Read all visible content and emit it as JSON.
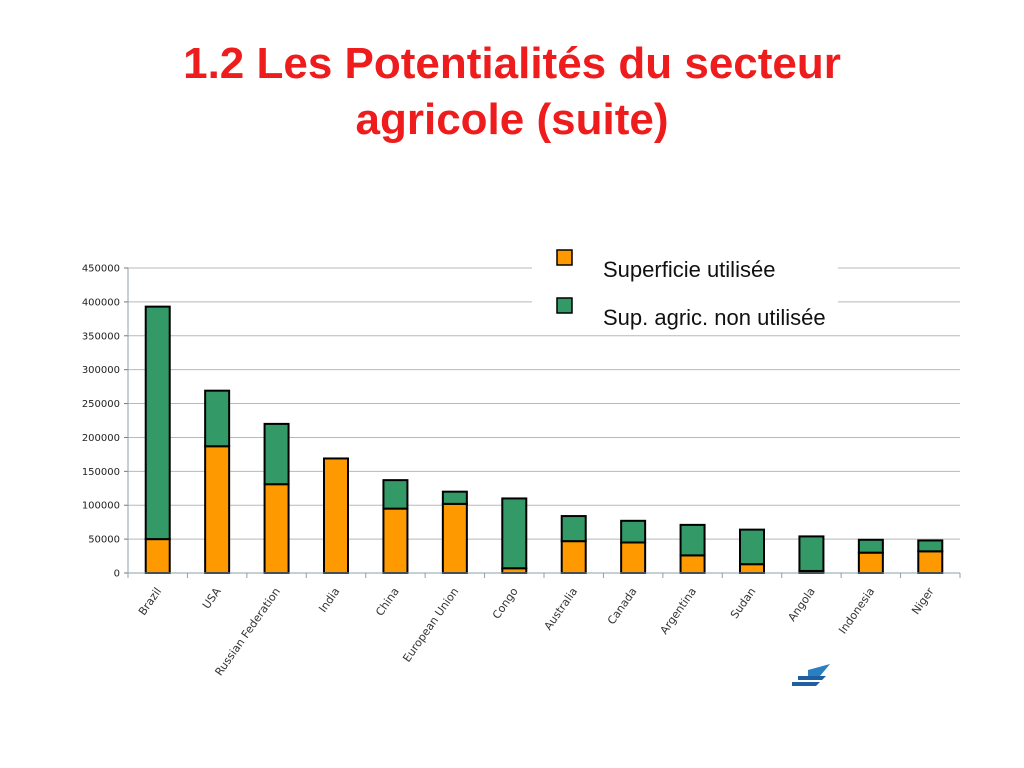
{
  "slide": {
    "title_line1": "1.2 Les Potentialités du secteur",
    "title_line2": "agricole (suite)"
  },
  "chart_data": {
    "type": "bar",
    "stacked": true,
    "categories": [
      "Brazil",
      "USA",
      "Russian Federation",
      "India",
      "China",
      "European Union",
      "Congo",
      "Australia",
      "Canada",
      "Argentina",
      "Sudan",
      "Angola",
      "Indonesia",
      "Niger"
    ],
    "series": [
      {
        "name": "Superficie utilisée",
        "color": "#ff9900",
        "values": [
          50000,
          187000,
          131000,
          169000,
          95000,
          102000,
          7000,
          47000,
          45000,
          26000,
          13000,
          3000,
          30000,
          32000
        ]
      },
      {
        "name": "Sup. agric. non utilisée",
        "color": "#339966",
        "values": [
          343000,
          82000,
          89000,
          0,
          42000,
          18000,
          103000,
          37000,
          32000,
          45000,
          51000,
          51000,
          19000,
          16000
        ]
      }
    ],
    "ylim": [
      0,
      450000
    ],
    "yticks": [
      0,
      50000,
      100000,
      150000,
      200000,
      250000,
      300000,
      350000,
      400000,
      450000
    ],
    "grid": true,
    "legend_position": "top-right"
  }
}
